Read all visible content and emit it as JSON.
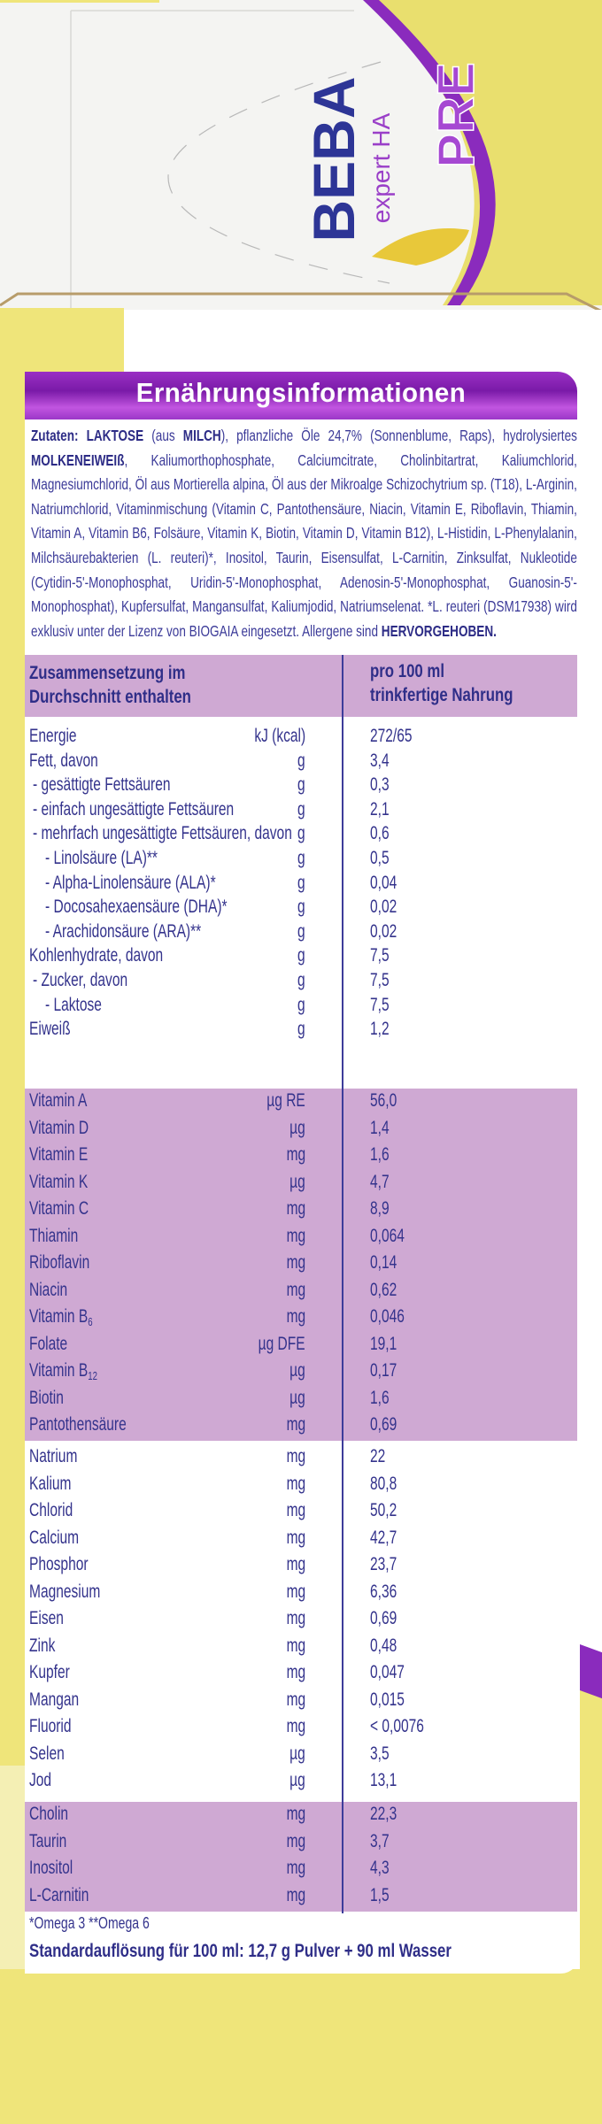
{
  "package": {
    "brand": "BEBA",
    "variant": "expert HA",
    "stage": "PRE",
    "colors": {
      "yellow": "#efe57a",
      "purple": "#8a2bbd",
      "band": "#cfa9d3",
      "text": "#34338c"
    }
  },
  "panel": {
    "title": "Ernährungsinformationen",
    "ingredients": {
      "parts": [
        {
          "t": "Zutaten: LAKTOSE",
          "b": true
        },
        {
          "t": " (aus ",
          "b": false
        },
        {
          "t": "MILCH",
          "b": true
        },
        {
          "t": "), pflanzliche Öle 24,7% (Sonnenblume, Raps), hydrolysiertes ",
          "b": false
        },
        {
          "t": "MOLKENEIWEIß",
          "b": true
        },
        {
          "t": ", Kaliumorthophosphate, Calciumcitrate, Cholinbitartrat, Kaliumchlorid, Magnesiumchlorid, Öl aus Mortierella alpina, Öl aus der Mikroalge Schizochytrium sp. (T18), L-Arginin, Natriumchlorid, Vitaminmischung (Vitamin C, Pantothensäure, Niacin, Vitamin E, Riboflavin, Thiamin, Vitamin A, Vitamin B6, Folsäure, Vitamin K, Biotin, Vitamin D, Vitamin B12), L-Histidin, L-Phenylalanin, Milchsäurebakterien (L. reuteri)*, Inositol, Taurin, Eisensulfat, L-Carnitin, Zinksulfat, Nukleotide (Cytidin-5'-Monophosphat, Uridin-5'-Monophosphat, Adenosin-5'-Monophosphat, Guanosin-5'-Monophosphat), Kupfersulfat, Mangansulfat, Kaliumjodid, Natriumselenat. *L. reuteri (DSM17938) wird exklusiv unter der Lizenz von BIOGAIA eingesetzt. Allergene sind ",
          "b": false
        },
        {
          "t": "HERVORGEHOBEN.",
          "b": true
        }
      ]
    },
    "table": {
      "header_left": [
        "Zusammensetzung im",
        "Durchschnitt enthalten"
      ],
      "header_right": [
        "pro 100 ml",
        "trinkfertige Nahrung"
      ],
      "sections": [
        {
          "shaded": false,
          "rows": [
            {
              "name": "Energie",
              "unit": "kJ (kcal)",
              "value": "272/65",
              "indent": 0
            },
            {
              "name": "Fett, davon",
              "unit": "g",
              "value": "3,4",
              "indent": 0
            },
            {
              "name": "- gesättigte Fettsäuren",
              "unit": "g",
              "value": "0,3",
              "indent": 1
            },
            {
              "name": "- einfach ungesättigte Fettsäuren",
              "unit": "g",
              "value": "2,1",
              "indent": 1
            },
            {
              "name": "- mehrfach ungesättigte Fettsäuren, davon",
              "unit": "g",
              "value": "0,6",
              "indent": 1
            },
            {
              "name": "- Linolsäure (LA)**",
              "unit": "g",
              "value": "0,5",
              "indent": 2
            },
            {
              "name": "- Alpha-Linolensäure (ALA)*",
              "unit": "g",
              "value": "0,04",
              "indent": 2
            },
            {
              "name": "- Docosahexaensäure (DHA)*",
              "unit": "g",
              "value": "0,02",
              "indent": 2
            },
            {
              "name": "- Arachidonsäure (ARA)**",
              "unit": "g",
              "value": "0,02",
              "indent": 2
            },
            {
              "name": "Kohlenhydrate, davon",
              "unit": "g",
              "value": "7,5",
              "indent": 0
            },
            {
              "name": "- Zucker, davon",
              "unit": "g",
              "value": "7,5",
              "indent": 1
            },
            {
              "name": "- Laktose",
              "unit": "g",
              "value": "7,5",
              "indent": 2
            },
            {
              "name": "Eiweiß",
              "unit": "g",
              "value": "1,2",
              "indent": 0
            }
          ]
        },
        {
          "shaded": true,
          "rows": [
            {
              "name": "Vitamin A",
              "unit": "µg RE",
              "value": "56,0",
              "indent": 0
            },
            {
              "name": "Vitamin D",
              "unit": "µg",
              "value": "1,4",
              "indent": 0
            },
            {
              "name": "Vitamin E",
              "unit": "mg",
              "value": "1,6",
              "indent": 0
            },
            {
              "name": "Vitamin K",
              "unit": "µg",
              "value": "4,7",
              "indent": 0
            },
            {
              "name": "Vitamin C",
              "unit": "mg",
              "value": "8,9",
              "indent": 0
            },
            {
              "name": "Thiamin",
              "unit": "mg",
              "value": "0,064",
              "indent": 0
            },
            {
              "name": "Riboflavin",
              "unit": "mg",
              "value": "0,14",
              "indent": 0
            },
            {
              "name": "Niacin",
              "unit": "mg",
              "value": "0,62",
              "indent": 0
            },
            {
              "name": "Vitamin B",
              "sub": "6",
              "unit": "mg",
              "value": "0,046",
              "indent": 0
            },
            {
              "name": "Folate",
              "unit": "µg DFE",
              "value": "19,1",
              "indent": 0
            },
            {
              "name": "Vitamin B",
              "sub": "12",
              "unit": "µg",
              "value": "0,17",
              "indent": 0
            },
            {
              "name": "Biotin",
              "unit": "µg",
              "value": "1,6",
              "indent": 0
            },
            {
              "name": "Pantothensäure",
              "unit": "mg",
              "value": "0,69",
              "indent": 0
            }
          ]
        },
        {
          "shaded": false,
          "rows": [
            {
              "name": "Natrium",
              "unit": "mg",
              "value": "22",
              "indent": 0
            },
            {
              "name": "Kalium",
              "unit": "mg",
              "value": "80,8",
              "indent": 0
            },
            {
              "name": "Chlorid",
              "unit": "mg",
              "value": "50,2",
              "indent": 0
            },
            {
              "name": "Calcium",
              "unit": "mg",
              "value": "42,7",
              "indent": 0
            },
            {
              "name": "Phosphor",
              "unit": "mg",
              "value": "23,7",
              "indent": 0
            },
            {
              "name": "Magnesium",
              "unit": "mg",
              "value": "6,36",
              "indent": 0
            },
            {
              "name": "Eisen",
              "unit": "mg",
              "value": "0,69",
              "indent": 0
            },
            {
              "name": "Zink",
              "unit": "mg",
              "value": "0,48",
              "indent": 0
            },
            {
              "name": "Kupfer",
              "unit": "mg",
              "value": "0,047",
              "indent": 0
            },
            {
              "name": "Mangan",
              "unit": "mg",
              "value": "0,015",
              "indent": 0
            },
            {
              "name": "Fluorid",
              "unit": "mg",
              "value": "< 0,0076",
              "indent": 0
            },
            {
              "name": "Selen",
              "unit": "µg",
              "value": "3,5",
              "indent": 0
            },
            {
              "name": "Jod",
              "unit": "µg",
              "value": "13,1",
              "indent": 0
            }
          ]
        },
        {
          "shaded": true,
          "rows": [
            {
              "name": "Cholin",
              "unit": "mg",
              "value": "22,3",
              "indent": 0
            },
            {
              "name": "Taurin",
              "unit": "mg",
              "value": "3,7",
              "indent": 0
            },
            {
              "name": "Inositol",
              "unit": "mg",
              "value": "4,3",
              "indent": 0
            },
            {
              "name": "L-Carnitin",
              "unit": "mg",
              "value": "1,5",
              "indent": 0
            }
          ]
        }
      ]
    },
    "footnote": "*Omega 3 **Omega 6",
    "standard": "Standardauflösung für 100 ml: 12,7 g Pulver + 90 ml Wasser"
  }
}
